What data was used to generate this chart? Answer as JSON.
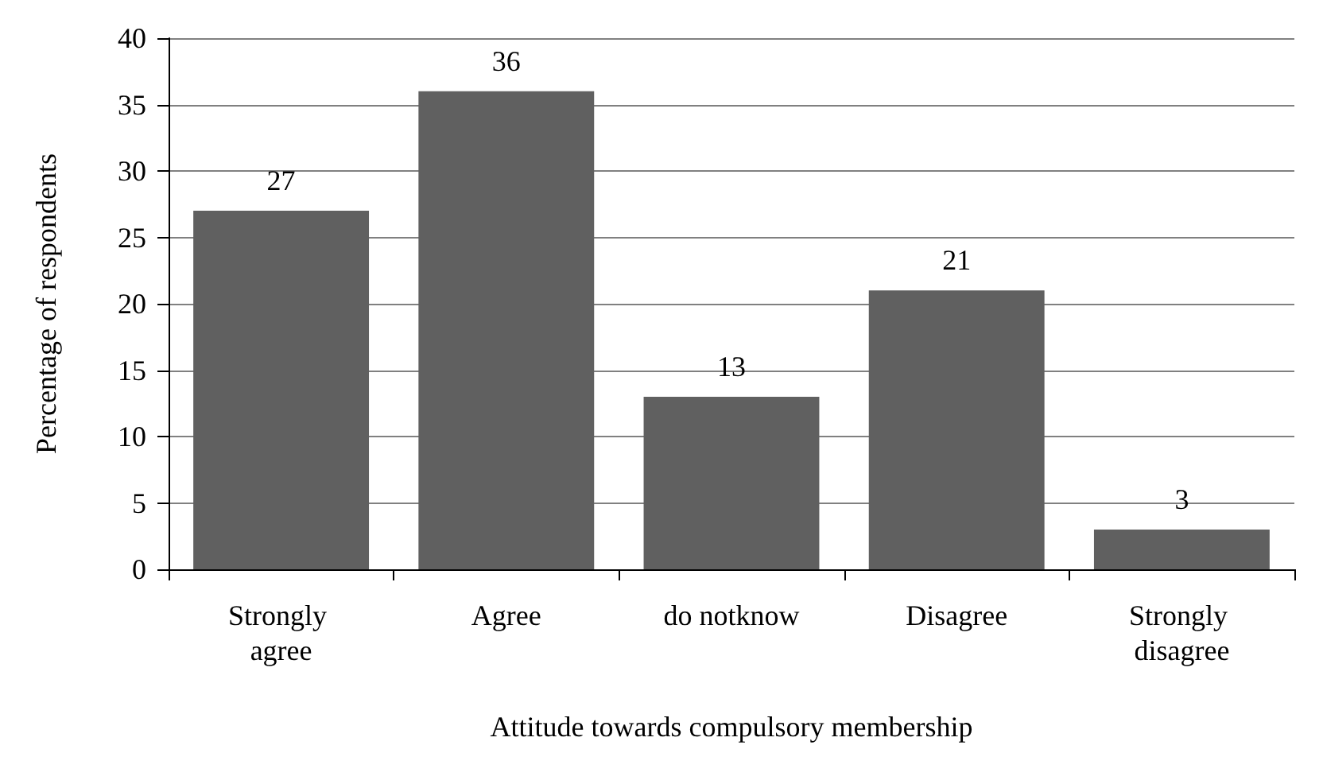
{
  "chart_data": {
    "type": "bar",
    "xlabel": "Attitude towards compulsory membership",
    "ylabel": "Percentage of respondents",
    "categories": [
      "Strongly agree",
      "Agree",
      "do notknow",
      "Disagree",
      "Strongly disagree"
    ],
    "values": [
      27,
      36,
      13,
      21,
      3
    ],
    "color": "#606060",
    "ylim": [
      0,
      40
    ],
    "yticks": [
      0,
      5,
      10,
      15,
      20,
      25,
      30,
      35,
      40
    ],
    "grid": "y",
    "data_labels": true
  }
}
